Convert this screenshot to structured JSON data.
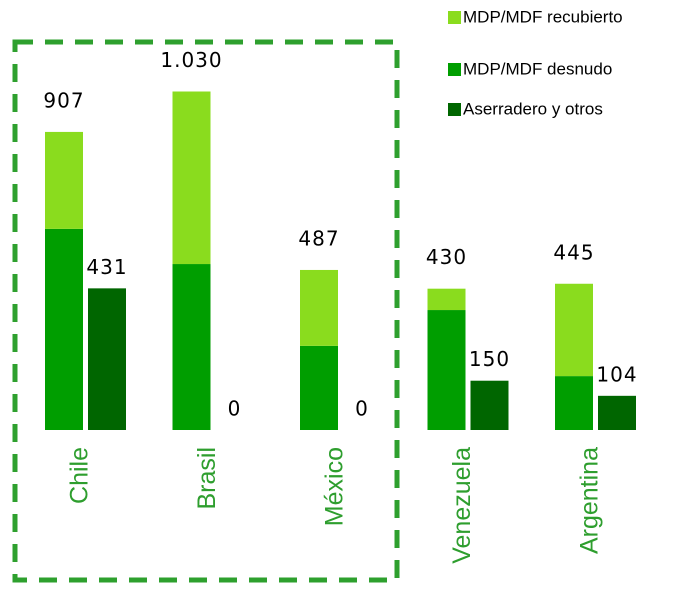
{
  "chart_data": {
    "type": "bar",
    "categories": [
      "Chile",
      "Brasil",
      "México",
      "Venezuela",
      "Argentina"
    ],
    "series": [
      {
        "name": "MDP/MDF recubierto",
        "color": "#8adc1e",
        "values": [
          295,
          525,
          231,
          65,
          281
        ],
        "stack": "a"
      },
      {
        "name": "MDP/MDF desnudo",
        "color": "#009e00",
        "values": [
          612,
          505,
          256,
          365,
          164
        ],
        "stack": "a"
      },
      {
        "name": "Aserradero y otros",
        "color": "#006600",
        "values": [
          431,
          0,
          0,
          150,
          104
        ],
        "stack": "b"
      }
    ],
    "totals": [
      907,
      1030,
      487,
      430,
      445
    ],
    "total_labels": [
      "907",
      "1.030",
      "487",
      "430",
      "445"
    ],
    "ylim": [
      0,
      1100
    ],
    "category_color": "#2e9e2e"
  }
}
